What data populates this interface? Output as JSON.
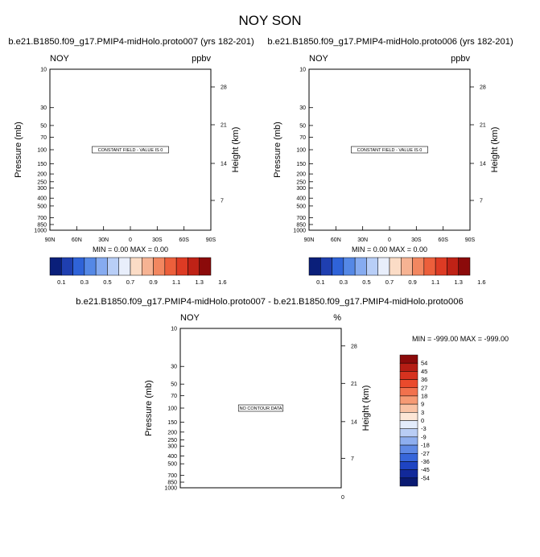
{
  "page": {
    "title": "NOY SON"
  },
  "chart_data": [
    {
      "type": "heatmap",
      "title": "b.e21.B1850.f09_g17.PMIP4-midHolo.proto007 (yrs 182-201)",
      "variable": "NOY",
      "units": "ppbv",
      "ylabel": "Pressure (mb)",
      "y2label": "Height (km)",
      "y_ticks": [
        10,
        30,
        50,
        70,
        100,
        150,
        200,
        250,
        300,
        400,
        500,
        700,
        850,
        1000
      ],
      "y_log": true,
      "y_reversed": true,
      "ylim": [
        1000,
        10
      ],
      "y2_ticks": [
        28,
        21,
        14,
        7
      ],
      "x_ticks": [
        "90N",
        "60N",
        "30N",
        "0",
        "30S",
        "60S",
        "90S"
      ],
      "message": "CONSTANT FIELD - VALUE IS 0",
      "stats": {
        "min": "0.00",
        "max": "0.00"
      },
      "colorbar": {
        "labels": [
          "0.1",
          "0.3",
          "0.5",
          "0.7",
          "0.9",
          "1.1",
          "1.3",
          "1.6"
        ],
        "colors": [
          "#0a1f7a",
          "#1f3fb0",
          "#2f63d8",
          "#5588e6",
          "#86abf0",
          "#b8cef7",
          "#e8eefb",
          "#fbdcc6",
          "#f6b393",
          "#f28760",
          "#ec5f3b",
          "#dd3b24",
          "#bf2216",
          "#8b0a0a"
        ]
      }
    },
    {
      "type": "heatmap",
      "title": "b.e21.B1850.f09_g17.PMIP4-midHolo.proto006 (yrs 182-201)",
      "variable": "NOY",
      "units": "ppbv",
      "ylabel": "Pressure (mb)",
      "y2label": "Height (km)",
      "y_ticks": [
        10,
        30,
        50,
        70,
        100,
        150,
        200,
        250,
        300,
        400,
        500,
        700,
        850,
        1000
      ],
      "y_log": true,
      "y_reversed": true,
      "ylim": [
        1000,
        10
      ],
      "y2_ticks": [
        28,
        21,
        14,
        7
      ],
      "x_ticks": [
        "90N",
        "60N",
        "30N",
        "0",
        "30S",
        "60S",
        "90S"
      ],
      "message": "CONSTANT FIELD - VALUE IS 0",
      "stats": {
        "min": "0.00",
        "max": "0.00"
      },
      "colorbar": {
        "labels": [
          "0.1",
          "0.3",
          "0.5",
          "0.7",
          "0.9",
          "1.1",
          "1.3",
          "1.6"
        ],
        "colors": [
          "#0a1f7a",
          "#1f3fb0",
          "#2f63d8",
          "#5588e6",
          "#86abf0",
          "#b8cef7",
          "#e8eefb",
          "#fbdcc6",
          "#f6b393",
          "#f28760",
          "#ec5f3b",
          "#dd3b24",
          "#bf2216",
          "#8b0a0a"
        ]
      }
    },
    {
      "type": "heatmap",
      "title": "b.e21.B1850.f09_g17.PMIP4-midHolo.proto007 - b.e21.B1850.f09_g17.PMIP4-midHolo.proto006",
      "variable": "NOY",
      "units": "%",
      "ylabel": "Pressure (mb)",
      "y2label": "Height (km)",
      "y_ticks": [
        10,
        30,
        50,
        70,
        100,
        150,
        200,
        250,
        300,
        400,
        500,
        700,
        850,
        1000
      ],
      "y_log": true,
      "y_reversed": true,
      "ylim": [
        1000,
        10
      ],
      "y2_ticks": [
        28,
        21,
        14,
        7
      ],
      "x_ticks": [
        "0"
      ],
      "message": "NO CONTOUR DATA",
      "stats": {
        "min": "-999.00",
        "max": "-999.00"
      },
      "colorbar": {
        "labels": [
          "54",
          "45",
          "36",
          "27",
          "18",
          "9",
          "3",
          "0",
          "-3",
          "-9",
          "-18",
          "-27",
          "-36",
          "-45",
          "-54"
        ],
        "colors": [
          "#8b0a0a",
          "#b51d14",
          "#d6321f",
          "#ea4a2c",
          "#f2714d",
          "#f69a74",
          "#f9c2a4",
          "#fde6d6",
          "#e3ecfb",
          "#b9cdf5",
          "#8eaeef",
          "#5f89e5",
          "#3766da",
          "#1e44c2",
          "#12299a",
          "#0a1a72"
        ]
      }
    }
  ]
}
